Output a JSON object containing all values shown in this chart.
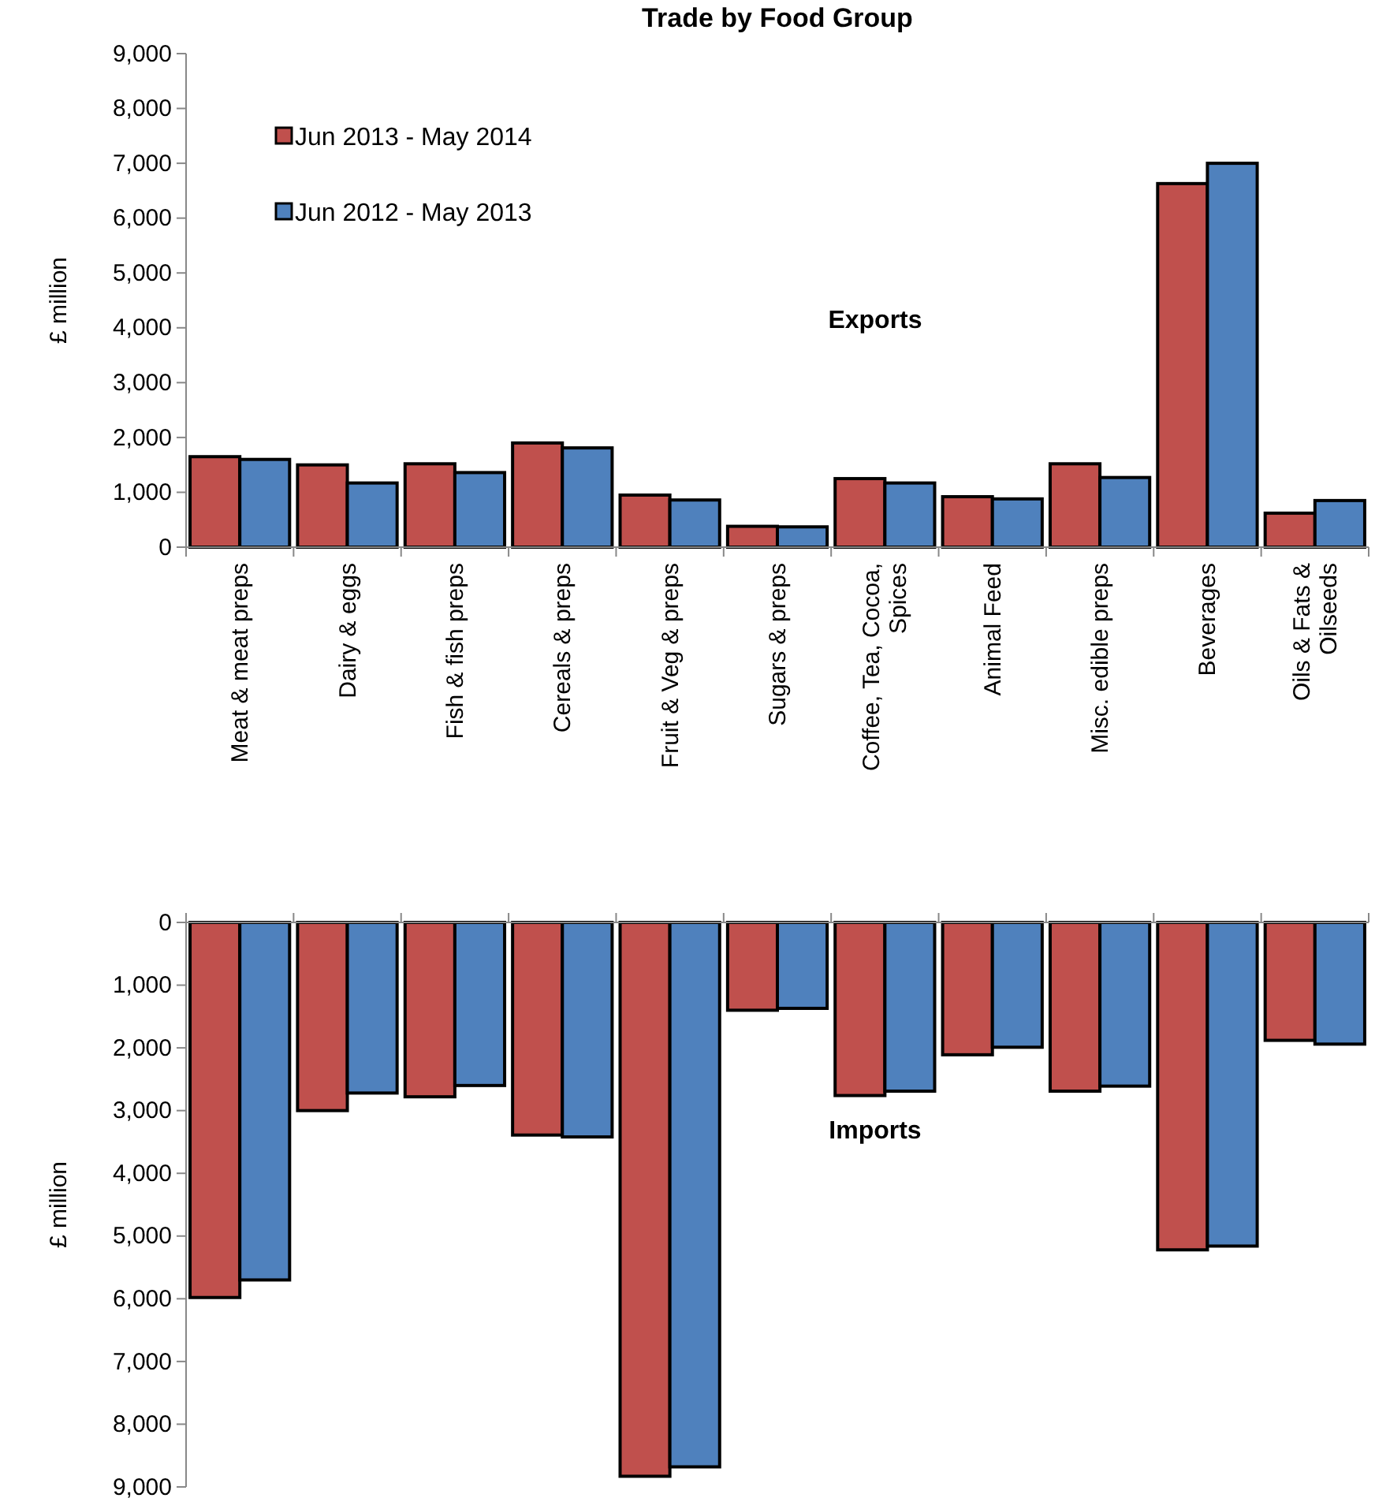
{
  "chart_data": [
    {
      "type": "bar",
      "title": "Trade by Food Group",
      "ylabel": "£ million",
      "annotations": [
        "Exports"
      ],
      "legend": "top left",
      "categories": [
        "Meat & meat preps",
        "Dairy & eggs",
        "Fish & fish preps",
        "Cereals & preps",
        "Fruit & Veg & preps",
        "Sugars & preps",
        "Coffee, Tea, Cocoa, Spices",
        "Animal Feed",
        "Misc. edible preps",
        "Beverages",
        "Oils & Fats & Oilseeds"
      ],
      "series": [
        {
          "name": "Jun 2013 - May 2014",
          "color": "#c0504d",
          "values": [
            1650,
            1500,
            1520,
            1900,
            950,
            380,
            1250,
            920,
            1520,
            6630,
            620
          ]
        },
        {
          "name": "Jun 2012 - May 2013",
          "color": "#4f81bd",
          "values": [
            1600,
            1170,
            1360,
            1810,
            860,
            370,
            1170,
            880,
            1270,
            7000,
            850
          ]
        }
      ],
      "ylim": [
        0,
        9000
      ],
      "yticks": [
        {
          "value": 0,
          "label": "0"
        },
        {
          "value": 1000,
          "label": "1,000"
        },
        {
          "value": 2000,
          "label": "2,000"
        },
        {
          "value": 3000,
          "label": "3,000"
        },
        {
          "value": 4000,
          "label": "4,000"
        },
        {
          "value": 5000,
          "label": "5,000"
        },
        {
          "value": 6000,
          "label": "6,000"
        },
        {
          "value": 7000,
          "label": "7,000"
        },
        {
          "value": 8000,
          "label": "8,000"
        },
        {
          "value": 9000,
          "label": "9,000"
        }
      ]
    },
    {
      "type": "bar",
      "ylabel": "£ million",
      "annotations": [
        "Imports"
      ],
      "tick_labels": "y",
      "categories": [
        null,
        null,
        null,
        null,
        null,
        null,
        null,
        null,
        null,
        null,
        null
      ],
      "series": [
        {
          "color": "#c0504d",
          "values": [
            5980,
            3000,
            2780,
            3390,
            8830,
            1400,
            2760,
            2110,
            2690,
            5220,
            1880
          ]
        },
        {
          "color": "#4f81bd",
          "values": [
            5700,
            2720,
            2600,
            3420,
            8680,
            1370,
            2690,
            1990,
            2610,
            5160,
            1940
          ]
        }
      ],
      "ylim": [
        9000,
        0
      ],
      "yticks": [
        {
          "value": 0,
          "label": "0"
        },
        {
          "value": 1000,
          "label": "1,000"
        },
        {
          "value": 2000,
          "label": "2,000"
        },
        {
          "value": 3000,
          "label": "3,000"
        },
        {
          "value": 4000,
          "label": "4,000"
        },
        {
          "value": 5000,
          "label": "5,000"
        },
        {
          "value": 6000,
          "label": "6,000"
        },
        {
          "value": 7000,
          "label": "7,000"
        },
        {
          "value": 8000,
          "label": "8,000"
        },
        {
          "value": 9000,
          "label": "9,000"
        }
      ]
    }
  ]
}
